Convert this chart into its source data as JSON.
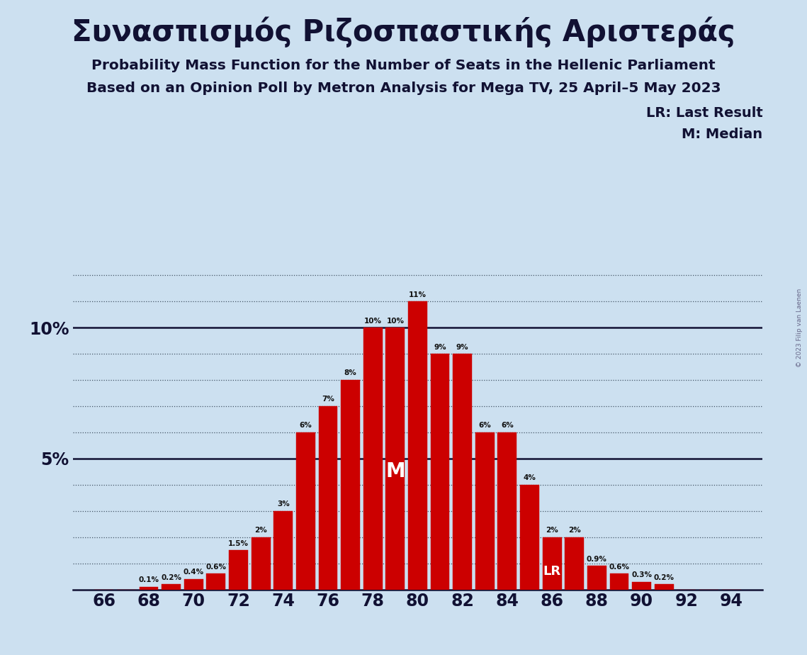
{
  "title_greek": "Συνασπισμός Ριζοσπαστικής Αριστεράς",
  "subtitle1": "Probability Mass Function for the Number of Seats in the Hellenic Parliament",
  "subtitle2": "Based on an Opinion Poll by Metron Analysis for Mega TV, 25 April–5 May 2023",
  "copyright": "© 2023 Filip van Laenen",
  "legend_lr": "LR: Last Result",
  "legend_m": "M: Median",
  "seats": [
    66,
    68,
    70,
    72,
    74,
    76,
    78,
    80,
    82,
    84,
    86,
    88,
    90,
    92,
    94
  ],
  "probabilities": [
    0.0,
    0.0,
    0.1,
    0.2,
    0.4,
    0.6,
    1.5,
    2.0,
    3.0,
    6.0,
    7.0,
    8.0,
    10.0,
    10.0,
    11.0,
    9.0,
    9.0,
    6.0,
    6.0,
    4.0,
    2.0,
    2.0,
    0.9,
    0.6,
    0.3,
    0.2,
    0.0,
    0.0,
    0.0
  ],
  "bar_seats": [
    66,
    68,
    70,
    72,
    74,
    76,
    78,
    79,
    80,
    82,
    84,
    86,
    88,
    90,
    92,
    94
  ],
  "bar_probs": [
    0.0,
    0.0,
    0.1,
    0.2,
    0.4,
    0.6,
    1.5,
    2.0,
    3.0,
    6.0,
    7.0,
    8.0,
    10.0,
    10.0,
    11.0,
    9.0,
    9.0,
    6.0,
    6.0,
    4.0,
    2.0,
    2.0,
    0.9,
    0.6,
    0.3,
    0.2,
    0.0,
    0.0,
    0.0
  ],
  "bar_color": "#cc0000",
  "background_color": "#cce0f0",
  "median_seat": 79,
  "lr_seat": 86,
  "xlabel_seats_start": 66,
  "xlabel_seats_end": 94,
  "xlabel_seats_step": 2,
  "grid_yticks": [
    1,
    2,
    3,
    4,
    6,
    7,
    8,
    9,
    11,
    12
  ],
  "solid_yticks": [
    5,
    10
  ],
  "ylim_max": 13.0
}
